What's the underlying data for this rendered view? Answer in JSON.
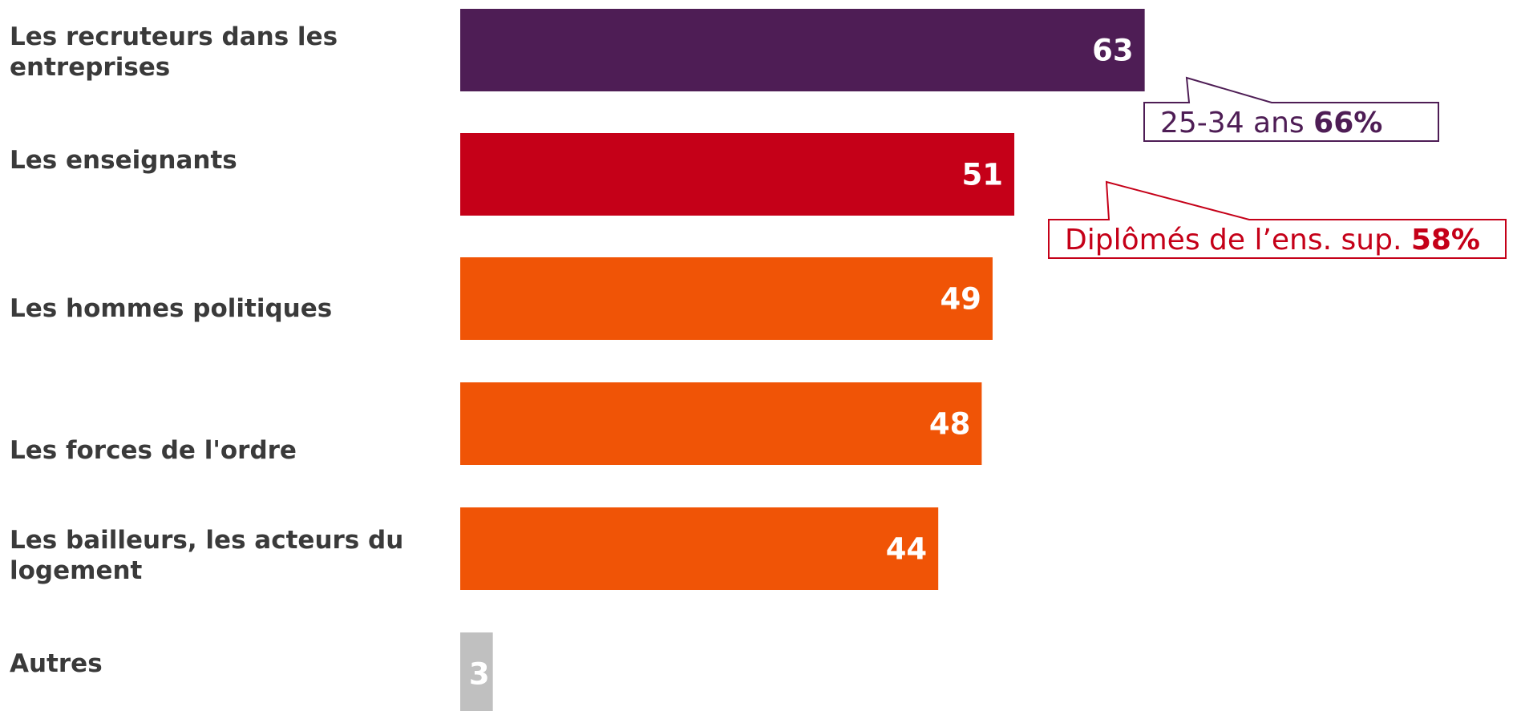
{
  "chart_data": {
    "type": "bar",
    "orientation": "horizontal",
    "categories": [
      [
        "Les recruteurs dans les",
        "entreprises"
      ],
      [
        "Les enseignants"
      ],
      [
        "Les hommes politiques"
      ],
      [
        "Les forces de l'ordre"
      ],
      [
        "Les bailleurs, les acteurs du",
        "logement"
      ],
      [
        "Autres"
      ]
    ],
    "values": [
      63,
      51,
      49,
      48,
      44,
      3
    ],
    "colors": [
      "#4e1d55",
      "#c50018",
      "#f05406",
      "#f05406",
      "#f05406",
      "#c0c0c0"
    ],
    "data_labels": [
      "63",
      "51",
      "49",
      "48",
      "44",
      "3"
    ],
    "xlim": [
      0,
      100
    ],
    "grid": false,
    "legend": "none",
    "annotations": [
      {
        "bar_index": 0,
        "text": "25-34 ans ",
        "value": "66%",
        "color": "#4e1d55"
      },
      {
        "bar_index": 1,
        "text": "Diplômés de l’ens. sup. ",
        "value": "58%",
        "color": "#c50018"
      }
    ]
  }
}
